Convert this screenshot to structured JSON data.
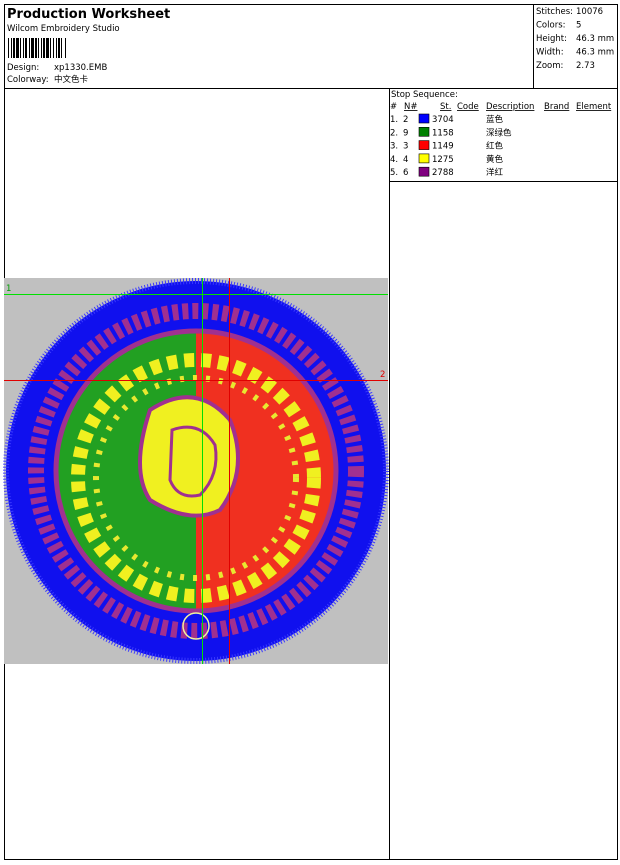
{
  "header": {
    "title": "Production Worksheet",
    "software": "Wilcom  Embroidery Studio",
    "design_label": "Design:",
    "design": "xp1330.EMB",
    "colorway_label": "Colorway:",
    "colorway": "中文色卡"
  },
  "stats": [
    {
      "label": "Stitches:",
      "value": "10076"
    },
    {
      "label": "Colors:",
      "value": "5"
    },
    {
      "label": "Height:",
      "value": "46.3 mm"
    },
    {
      "label": "Width:",
      "value": "46.3 mm"
    },
    {
      "label": "Zoom:",
      "value": "2.73"
    }
  ],
  "stop_sequence": {
    "title": "Stop Sequence:",
    "columns": [
      "#",
      "N#",
      "St.",
      "Code",
      "Description",
      "Brand",
      "Element"
    ],
    "rows": [
      {
        "index": "1.",
        "needle": "2",
        "color": "#0000ff",
        "stitches": "3704",
        "description": "蓝色"
      },
      {
        "index": "2.",
        "needle": "9",
        "color": "#008000",
        "stitches": "1158",
        "description": "深绿色"
      },
      {
        "index": "3.",
        "needle": "3",
        "color": "#ff0000",
        "stitches": "1149",
        "description": "红色"
      },
      {
        "index": "4.",
        "needle": "4",
        "color": "#ffff00",
        "stitches": "1275",
        "description": "黄色"
      },
      {
        "index": "5.",
        "needle": "6",
        "color": "#800080",
        "stitches": "2788",
        "description": "洋红"
      }
    ]
  },
  "guides": {
    "first": "1",
    "second": "2"
  }
}
